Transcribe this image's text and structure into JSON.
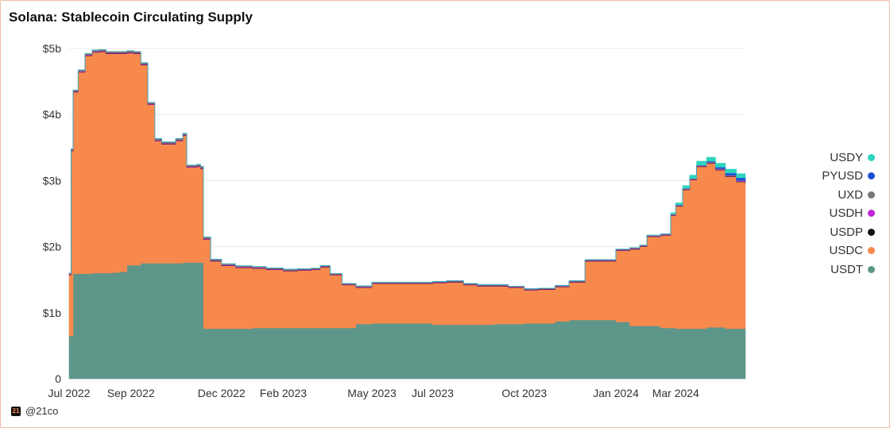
{
  "title": "Solana: Stablecoin Circulating Supply",
  "credit": {
    "logo_text": "21",
    "handle": "@21co"
  },
  "chart_data": {
    "type": "area",
    "stacked": true,
    "title": "Solana: Stablecoin Circulating Supply",
    "xlabel": "",
    "ylabel": "",
    "ylim": [
      0,
      5.0
    ],
    "xlim": [
      "2022-07-01",
      "2024-05-10"
    ],
    "grid": true,
    "legend_position": "right",
    "y_ticks": [
      {
        "value": 0,
        "label": "0"
      },
      {
        "value": 1,
        "label": "$1b"
      },
      {
        "value": 2,
        "label": "$2b"
      },
      {
        "value": 3,
        "label": "$3b"
      },
      {
        "value": 4,
        "label": "$4b"
      },
      {
        "value": 5,
        "label": "$5b"
      }
    ],
    "x_ticks": [
      {
        "date": "2022-07-01",
        "label": "Jul 2022"
      },
      {
        "date": "2022-09-01",
        "label": "Sep 2022"
      },
      {
        "date": "2022-12-01",
        "label": "Dec 2022"
      },
      {
        "date": "2023-02-01",
        "label": "Feb 2023"
      },
      {
        "date": "2023-05-01",
        "label": "May 2023"
      },
      {
        "date": "2023-07-01",
        "label": "Jul 2023"
      },
      {
        "date": "2023-10-01",
        "label": "Oct 2023"
      },
      {
        "date": "2024-01-01",
        "label": "Jan 2024"
      },
      {
        "date": "2024-03-01",
        "label": "Mar 2024"
      }
    ],
    "x": [
      "2022-07-01",
      "2022-07-03",
      "2022-07-05",
      "2022-07-10",
      "2022-07-17",
      "2022-07-24",
      "2022-07-31",
      "2022-08-07",
      "2022-08-14",
      "2022-08-21",
      "2022-08-28",
      "2022-09-04",
      "2022-09-11",
      "2022-09-18",
      "2022-09-25",
      "2022-10-02",
      "2022-10-09",
      "2022-10-16",
      "2022-10-23",
      "2022-10-27",
      "2022-10-30",
      "2022-11-06",
      "2022-11-10",
      "2022-11-13",
      "2022-11-20",
      "2022-12-01",
      "2022-12-15",
      "2023-01-01",
      "2023-01-15",
      "2023-02-01",
      "2023-02-15",
      "2023-03-01",
      "2023-03-10",
      "2023-03-20",
      "2023-04-01",
      "2023-04-15",
      "2023-05-01",
      "2023-05-15",
      "2023-06-01",
      "2023-06-15",
      "2023-07-01",
      "2023-07-15",
      "2023-08-01",
      "2023-08-15",
      "2023-09-01",
      "2023-09-15",
      "2023-10-01",
      "2023-10-15",
      "2023-11-01",
      "2023-11-15",
      "2023-12-01",
      "2023-12-15",
      "2024-01-01",
      "2024-01-15",
      "2024-01-25",
      "2024-02-01",
      "2024-02-15",
      "2024-02-25",
      "2024-03-01",
      "2024-03-08",
      "2024-03-15",
      "2024-03-22",
      "2024-04-01",
      "2024-04-10",
      "2024-04-20",
      "2024-05-01",
      "2024-05-10"
    ],
    "series": [
      {
        "name": "USDT",
        "color": "#5f968a",
        "values": [
          0.65,
          0.65,
          1.59,
          1.59,
          1.59,
          1.6,
          1.6,
          1.6,
          1.61,
          1.62,
          1.72,
          1.72,
          1.75,
          1.75,
          1.75,
          1.75,
          1.75,
          1.75,
          1.76,
          1.76,
          1.76,
          1.76,
          1.76,
          0.76,
          0.76,
          0.76,
          0.76,
          0.77,
          0.77,
          0.77,
          0.77,
          0.77,
          0.77,
          0.77,
          0.77,
          0.83,
          0.84,
          0.84,
          0.84,
          0.84,
          0.82,
          0.82,
          0.82,
          0.82,
          0.83,
          0.83,
          0.84,
          0.84,
          0.87,
          0.89,
          0.89,
          0.89,
          0.86,
          0.8,
          0.8,
          0.8,
          0.77,
          0.77,
          0.76,
          0.76,
          0.76,
          0.76,
          0.78,
          0.78,
          0.76,
          0.76,
          0.76
        ]
      },
      {
        "name": "USDC",
        "color": "#f7894d",
        "values": [
          0.92,
          2.8,
          2.75,
          3.05,
          3.3,
          3.34,
          3.35,
          3.32,
          3.31,
          3.3,
          3.21,
          3.2,
          3.0,
          2.4,
          1.85,
          1.8,
          1.8,
          1.85,
          1.92,
          1.44,
          1.44,
          1.45,
          1.42,
          1.35,
          1.02,
          0.95,
          0.92,
          0.9,
          0.88,
          0.86,
          0.87,
          0.88,
          0.92,
          0.8,
          0.65,
          0.55,
          0.6,
          0.6,
          0.6,
          0.6,
          0.63,
          0.64,
          0.6,
          0.58,
          0.57,
          0.55,
          0.5,
          0.51,
          0.52,
          0.57,
          0.89,
          0.89,
          1.08,
          1.16,
          1.2,
          1.35,
          1.4,
          1.7,
          1.85,
          2.1,
          2.25,
          2.45,
          2.48,
          2.38,
          2.3,
          2.22,
          2.2
        ]
      },
      {
        "name": "USDP",
        "color": "#111111",
        "values": [
          0.005,
          0.005,
          0.005,
          0.005,
          0.005,
          0.005,
          0.005,
          0.005,
          0.005,
          0.005,
          0.005,
          0.005,
          0.005,
          0.005,
          0.005,
          0.005,
          0.005,
          0.005,
          0.005,
          0.005,
          0.005,
          0.005,
          0.005,
          0.005,
          0.005,
          0.005,
          0.005,
          0.005,
          0.005,
          0.005,
          0.005,
          0.005,
          0.005,
          0.005,
          0.005,
          0.005,
          0.005,
          0.005,
          0.005,
          0.005,
          0.005,
          0.005,
          0.005,
          0.005,
          0.005,
          0.005,
          0.005,
          0.005,
          0.005,
          0.005,
          0.005,
          0.005,
          0.005,
          0.005,
          0.005,
          0.005,
          0.005,
          0.005,
          0.005,
          0.005,
          0.005,
          0.005,
          0.005,
          0.005,
          0.005,
          0.005,
          0.005
        ]
      },
      {
        "name": "USDH",
        "color": "#c026d3",
        "values": [
          0.01,
          0.01,
          0.01,
          0.01,
          0.01,
          0.01,
          0.01,
          0.01,
          0.01,
          0.01,
          0.01,
          0.01,
          0.01,
          0.01,
          0.01,
          0.01,
          0.01,
          0.01,
          0.01,
          0.01,
          0.01,
          0.01,
          0.01,
          0.01,
          0.01,
          0.01,
          0.01,
          0.008,
          0.008,
          0.008,
          0.008,
          0.008,
          0.008,
          0.008,
          0.008,
          0.008,
          0.008,
          0.008,
          0.008,
          0.008,
          0.008,
          0.008,
          0.008,
          0.008,
          0.008,
          0.008,
          0.008,
          0.008,
          0.008,
          0.008,
          0.008,
          0.008,
          0.008,
          0.008,
          0.008,
          0.008,
          0.008,
          0.008,
          0.008,
          0.008,
          0.008,
          0.008,
          0.008,
          0.008,
          0.008,
          0.008,
          0.008
        ]
      },
      {
        "name": "UXD",
        "color": "#777777",
        "values": [
          0.015,
          0.015,
          0.015,
          0.02,
          0.02,
          0.02,
          0.02,
          0.02,
          0.02,
          0.02,
          0.02,
          0.02,
          0.02,
          0.02,
          0.02,
          0.02,
          0.02,
          0.02,
          0.02,
          0.02,
          0.02,
          0.02,
          0.02,
          0.02,
          0.015,
          0.015,
          0.015,
          0.015,
          0.015,
          0.015,
          0.012,
          0.012,
          0.012,
          0.012,
          0.012,
          0.012,
          0.01,
          0.01,
          0.01,
          0.01,
          0.01,
          0.01,
          0.01,
          0.01,
          0.01,
          0.01,
          0.01,
          0.01,
          0.01,
          0.01,
          0.01,
          0.01,
          0.01,
          0.01,
          0.01,
          0.01,
          0.01,
          0.01,
          0.01,
          0.01,
          0.01,
          0.01,
          0.01,
          0.01,
          0.01,
          0.01,
          0.01
        ]
      },
      {
        "name": "PYUSD",
        "color": "#1d4ed8",
        "values": [
          0,
          0,
          0,
          0,
          0,
          0,
          0,
          0,
          0,
          0,
          0,
          0,
          0,
          0,
          0,
          0,
          0,
          0,
          0,
          0,
          0,
          0,
          0,
          0,
          0,
          0,
          0,
          0,
          0,
          0,
          0,
          0,
          0,
          0,
          0,
          0,
          0,
          0,
          0,
          0,
          0,
          0,
          0,
          0,
          0,
          0,
          0,
          0,
          0,
          0,
          0,
          0,
          0,
          0,
          0,
          0,
          0,
          0,
          0,
          0,
          0,
          0,
          0.01,
          0.02,
          0.03,
          0.04,
          0.05
        ]
      },
      {
        "name": "USDY",
        "color": "#2dd4bf",
        "values": [
          0,
          0,
          0,
          0,
          0,
          0,
          0,
          0,
          0,
          0,
          0,
          0,
          0,
          0,
          0,
          0,
          0,
          0,
          0,
          0,
          0,
          0,
          0,
          0,
          0,
          0,
          0,
          0,
          0,
          0,
          0,
          0,
          0,
          0,
          0,
          0,
          0,
          0,
          0,
          0,
          0,
          0,
          0,
          0,
          0,
          0,
          0,
          0,
          0,
          0,
          0,
          0,
          0,
          0,
          0,
          0,
          0,
          0.02,
          0.03,
          0.04,
          0.05,
          0.06,
          0.06,
          0.06,
          0.06,
          0.06,
          0.06
        ]
      }
    ]
  },
  "legend_order": [
    "USDY",
    "PYUSD",
    "UXD",
    "USDH",
    "USDP",
    "USDC",
    "USDT"
  ]
}
